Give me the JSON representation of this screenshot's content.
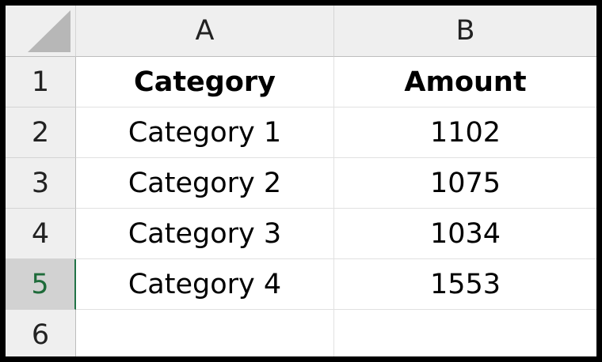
{
  "sheet": {
    "columns": [
      "A",
      "B"
    ],
    "rows": [
      "1",
      "2",
      "3",
      "4",
      "5",
      "6"
    ],
    "selected_row": "5",
    "cells": [
      [
        "Category",
        "Amount"
      ],
      [
        "Category 1",
        "1102"
      ],
      [
        "Category 2",
        "1075"
      ],
      [
        "Category 3",
        "1034"
      ],
      [
        "Category 4",
        "1553"
      ],
      [
        "",
        ""
      ]
    ]
  },
  "colors": {
    "header_bg": "#efefef",
    "selected_row_header_bg": "#d2d2d2",
    "selected_accent": "#217346",
    "frame_border": "#000000"
  },
  "icons": {
    "corner": "select-all-triangle-icon"
  }
}
